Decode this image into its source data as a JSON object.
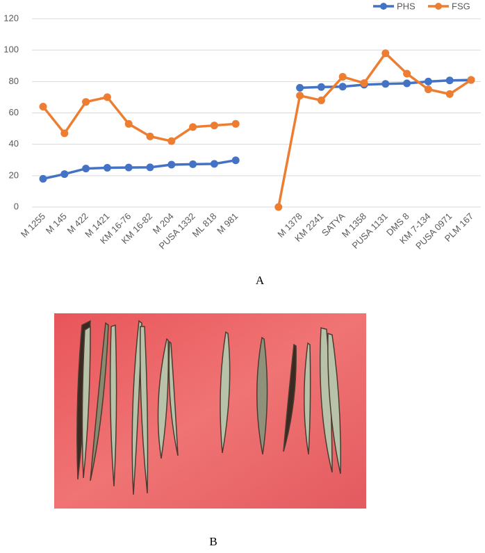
{
  "chart_data": {
    "type": "line",
    "categories": [
      "M 1255",
      "M 145",
      "M 422",
      "M 1421",
      "KM 16-76",
      "KM 16-82",
      "M 204",
      "PUSA 1332",
      "ML 818",
      "M 981",
      null,
      null,
      "M 1378",
      "KM 2241",
      "SATYA",
      "M 1358",
      "PUSA 1131",
      "DMS 8",
      "KM 7-134",
      "PUSA 0971",
      "PLM 167"
    ],
    "series": [
      {
        "name": "PHS",
        "color": "#4472c4",
        "values": [
          18,
          21,
          24.5,
          25,
          25.2,
          25.3,
          27,
          27.3,
          27.5,
          29.8,
          null,
          null,
          76,
          76.5,
          76.7,
          78,
          78.5,
          78.8,
          80,
          80.7,
          81
        ]
      },
      {
        "name": "FSG",
        "color": "#ed7d31",
        "values": [
          64,
          47,
          67,
          70,
          53,
          45,
          42,
          51,
          52,
          53,
          null,
          0,
          71,
          68,
          83,
          79,
          98,
          85,
          75,
          72,
          81
        ]
      }
    ],
    "ylim": [
      0,
      120
    ],
    "yticks": [
      0,
      20,
      40,
      60,
      80,
      100,
      120
    ],
    "grid": true,
    "legend": "top-right"
  },
  "captions": [
    "A",
    "B"
  ]
}
